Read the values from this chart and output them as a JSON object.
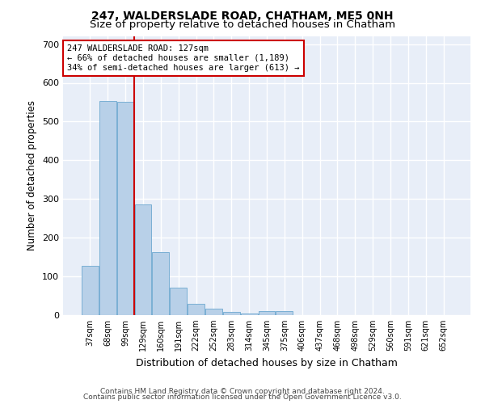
{
  "title": "247, WALDERSLADE ROAD, CHATHAM, ME5 0NH",
  "subtitle": "Size of property relative to detached houses in Chatham",
  "xlabel": "Distribution of detached houses by size in Chatham",
  "ylabel": "Number of detached properties",
  "categories": [
    "37sqm",
    "68sqm",
    "99sqm",
    "129sqm",
    "160sqm",
    "191sqm",
    "222sqm",
    "252sqm",
    "283sqm",
    "314sqm",
    "345sqm",
    "375sqm",
    "406sqm",
    "437sqm",
    "468sqm",
    "498sqm",
    "529sqm",
    "560sqm",
    "591sqm",
    "621sqm",
    "652sqm"
  ],
  "values": [
    127,
    554,
    551,
    285,
    163,
    70,
    29,
    17,
    9,
    5,
    10,
    10,
    0,
    0,
    0,
    0,
    0,
    0,
    0,
    0,
    0
  ],
  "bar_color": "#b8d0e8",
  "bar_edge_color": "#7aafd4",
  "background_color": "#e8eef8",
  "grid_color": "#ffffff",
  "vline_color": "#cc0000",
  "annotation_text": "247 WALDERSLADE ROAD: 127sqm\n← 66% of detached houses are smaller (1,189)\n34% of semi-detached houses are larger (613) →",
  "annotation_box_color": "#cc0000",
  "ylim": [
    0,
    720
  ],
  "yticks": [
    0,
    100,
    200,
    300,
    400,
    500,
    600,
    700
  ],
  "footer_line1": "Contains HM Land Registry data © Crown copyright and database right 2024.",
  "footer_line2": "Contains public sector information licensed under the Open Government Licence v3.0.",
  "title_fontsize": 10,
  "subtitle_fontsize": 9.5,
  "xlabel_fontsize": 9,
  "ylabel_fontsize": 8.5,
  "annot_fontsize": 7.5
}
